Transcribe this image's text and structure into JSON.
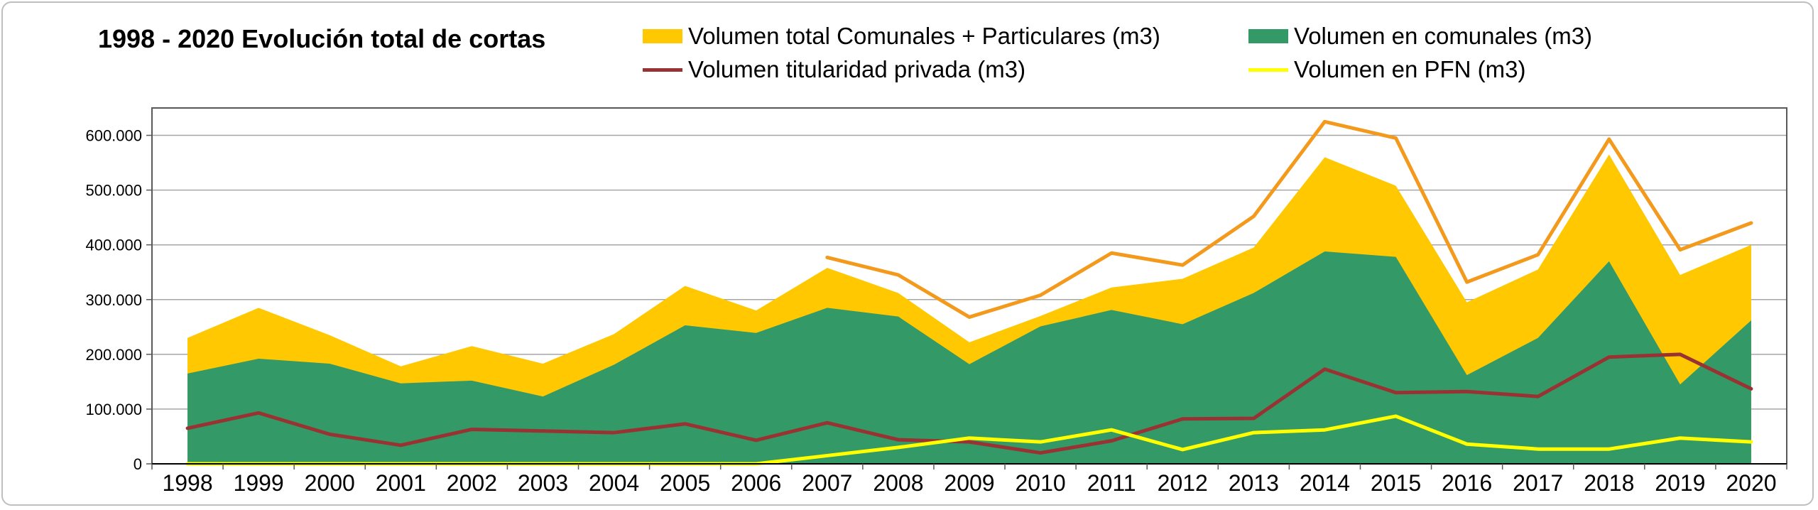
{
  "chart_data": {
    "type": "area",
    "title": "1998 - 2020 Evolución total de cortas",
    "categories": [
      "1998",
      "1999",
      "2000",
      "2001",
      "2002",
      "2003",
      "2004",
      "2005",
      "2006",
      "2007",
      "2008",
      "2009",
      "2010",
      "2011",
      "2012",
      "2013",
      "2014",
      "2015",
      "2016",
      "2017",
      "2018",
      "2019",
      "2020"
    ],
    "ylim": [
      0,
      650000
    ],
    "yticks": [
      0,
      100000,
      200000,
      300000,
      400000,
      500000,
      600000
    ],
    "ytick_labels": [
      "0",
      "100.000",
      "200.000",
      "300.000",
      "400.000",
      "500.000",
      "600.000"
    ],
    "grid": true,
    "series": [
      {
        "name": "Volumen total Comunales + Particulares (m3)",
        "kind": "area",
        "color": "#ffc800",
        "values": [
          230000,
          285000,
          235000,
          178000,
          215000,
          183000,
          237000,
          325000,
          280000,
          358000,
          312000,
          222000,
          270000,
          322000,
          338000,
          395000,
          560000,
          508000,
          295000,
          355000,
          565000,
          345000,
          400000
        ]
      },
      {
        "name": "Volumen en comunales (m3)",
        "kind": "area",
        "color": "#339966",
        "values": [
          165000,
          192000,
          183000,
          147000,
          152000,
          123000,
          181000,
          253000,
          239000,
          285000,
          269000,
          182000,
          251000,
          281000,
          255000,
          312000,
          388000,
          378000,
          162000,
          230000,
          370000,
          145000,
          262000
        ]
      },
      {
        "name": "",
        "kind": "line",
        "color": "#f39a1d",
        "values": [
          null,
          null,
          null,
          null,
          null,
          null,
          null,
          null,
          null,
          377000,
          345000,
          268000,
          308000,
          385000,
          363000,
          452000,
          625000,
          595000,
          332000,
          382000,
          593000,
          391000,
          440000
        ]
      },
      {
        "name": "Volumen titularidad privada (m3)",
        "kind": "line",
        "color": "#993333",
        "values": [
          65000,
          93000,
          54000,
          34000,
          63000,
          60000,
          57000,
          73000,
          43000,
          75000,
          44000,
          40000,
          20000,
          42000,
          82000,
          83000,
          173000,
          130000,
          132000,
          123000,
          195000,
          200000,
          137000
        ]
      },
      {
        "name": "Volumen en PFN (m3)",
        "kind": "line",
        "color": "#ffff00",
        "values": [
          0,
          0,
          0,
          0,
          0,
          0,
          0,
          0,
          0,
          15000,
          30000,
          47000,
          40000,
          62000,
          26000,
          57000,
          62000,
          87000,
          36000,
          27000,
          27000,
          47000,
          40000
        ]
      }
    ]
  },
  "legend": [
    {
      "label": "Volumen total Comunales + Particulares (m3)",
      "type": "area",
      "color": "#ffc800"
    },
    {
      "label": "Volumen en comunales (m3)",
      "type": "area",
      "color": "#339966"
    },
    {
      "label": "Volumen titularidad privada (m3)",
      "type": "line",
      "color": "#993333"
    },
    {
      "label": "Volumen en PFN (m3)",
      "type": "line",
      "color": "#ffff00"
    }
  ]
}
